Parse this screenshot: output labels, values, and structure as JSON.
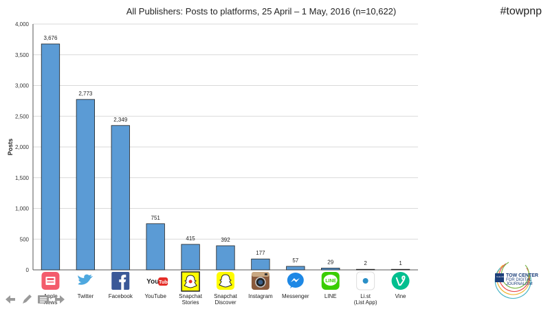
{
  "header": {
    "hashtag": "#towpnp"
  },
  "logo": {
    "line1": "TOW CENTER",
    "line2": "FOR DIGITAL",
    "line3": "JOURNALISM",
    "badge": "Columbia Journalism School"
  },
  "colors": {
    "bar_fill": "#5b9bd5",
    "bar_stroke": "#1f1f1f",
    "grid": "#d9d9d9"
  },
  "chart_data": {
    "type": "bar",
    "title": "All Publishers: Posts to platforms, 25 April – 1 May, 2016 (n=10,622)",
    "ylabel": "Posts",
    "xlabel": "",
    "ylim": [
      0,
      4000
    ],
    "yticks": [
      0,
      500,
      1000,
      1500,
      2000,
      2500,
      3000,
      3500,
      4000
    ],
    "ytick_labels": [
      "0",
      "500",
      "1,000",
      "1,500",
      "2,000",
      "2,500",
      "3,000",
      "3,500",
      "4,000"
    ],
    "grid": true,
    "categories": [
      [
        "Apple",
        "News"
      ],
      [
        "Twitter"
      ],
      [
        "Facebook"
      ],
      [
        "YouTube"
      ],
      [
        "Snapchat",
        "Stories"
      ],
      [
        "Snapchat",
        "Discover"
      ],
      [
        "Instagram"
      ],
      [
        "Messenger"
      ],
      [
        "LINE"
      ],
      [
        "Li.st",
        "(List App)"
      ],
      [
        "Vine"
      ]
    ],
    "icons": [
      "apple-news-icon",
      "twitter-icon",
      "facebook-icon",
      "youtube-icon",
      "snapchat-stories-icon",
      "snapchat-discover-icon",
      "instagram-icon",
      "messenger-icon",
      "line-icon",
      "list-app-icon",
      "vine-icon"
    ],
    "values": [
      3676,
      2773,
      2349,
      751,
      415,
      392,
      177,
      57,
      29,
      2,
      1
    ],
    "value_labels": [
      "3,676",
      "2,773",
      "2,349",
      "751",
      "415",
      "392",
      "177",
      "57",
      "29",
      "2",
      "1"
    ]
  }
}
